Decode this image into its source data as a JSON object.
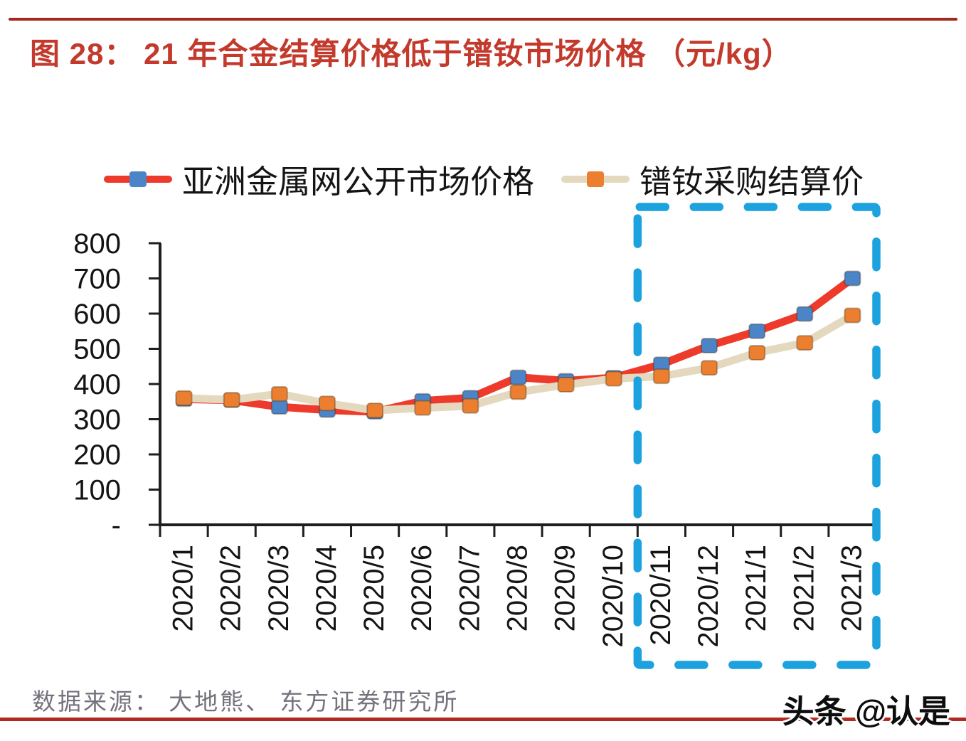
{
  "header": {
    "title": "图 28：  21 年合金结算价格低于镨钕市场价格 （元/kg）",
    "title_color": "#C33A2C",
    "rule_color": "#A02820"
  },
  "legend": {
    "items": [
      {
        "label": "亚洲金属网公开市场价格",
        "line_color": "#EE3A2B",
        "marker_color": "#4C85C7"
      },
      {
        "label": "镨钕采购结算价",
        "line_color": "#E4D9BF",
        "marker_color": "#EC7F2F"
      }
    ]
  },
  "footer": {
    "source": "数据来源： 大地熊、 东方证券研究所",
    "source_color": "#73737D",
    "rule_color": "#AF2A20",
    "watermark": "头条 @认是"
  },
  "chart_data": {
    "type": "line",
    "title": "21 年合金结算价格低于镨钕市场价格（元/kg）",
    "unit": "元/kg",
    "categories": [
      "2020/1",
      "2020/2",
      "2020/3",
      "2020/4",
      "2020/5",
      "2020/6",
      "2020/7",
      "2020/8",
      "2020/9",
      "2020/10",
      "2020/11",
      "2020/12",
      "2021/1",
      "2021/2",
      "2021/3"
    ],
    "series": [
      {
        "name": "亚洲金属网公开市场价格",
        "line_color": "#EE3A2B",
        "marker": "square",
        "marker_color": "#4C85C7",
        "values": [
          357,
          354,
          335,
          326,
          321,
          352,
          361,
          419,
          409,
          418,
          456,
          509,
          550,
          599,
          700
        ]
      },
      {
        "name": "镨钕采购结算价",
        "line_color": "#E4D9BF",
        "marker": "square",
        "marker_color": "#EC7F2F",
        "values": [
          360,
          355,
          372,
          345,
          325,
          332,
          338,
          377,
          398,
          415,
          422,
          446,
          489,
          517,
          595
        ]
      }
    ],
    "ylim": [
      0,
      800
    ],
    "ytick_step": 100,
    "ytick_zero_label": "-",
    "axis_color": "#1E1E1E",
    "grid": false,
    "legend_position": "top",
    "highlight_box": {
      "from_category": "2020/11",
      "to_category": "2021/3",
      "color": "#1CA2DE",
      "style": "dashed"
    }
  }
}
